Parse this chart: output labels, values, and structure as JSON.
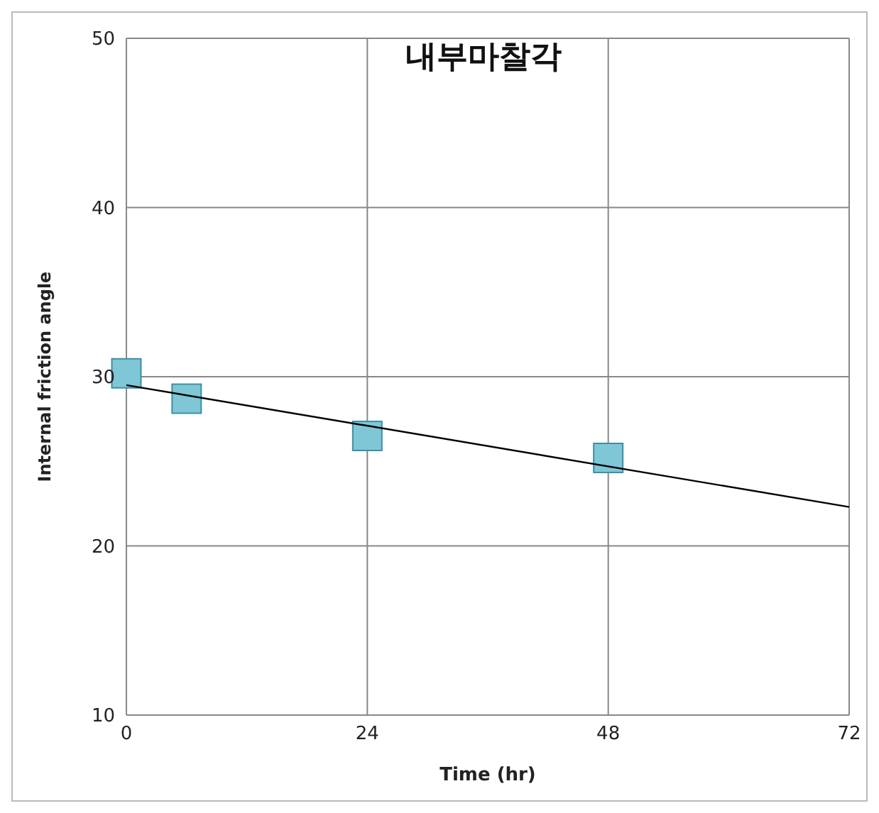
{
  "chart_data": {
    "type": "scatter",
    "title": "내부마찰각",
    "xlabel": "Time (hr)",
    "ylabel": "Internal friction angle",
    "xlim": [
      0,
      72
    ],
    "xticks": [
      0,
      24,
      48,
      72
    ],
    "ylim": [
      10,
      50
    ],
    "yticks": [
      10,
      20,
      30,
      40,
      50
    ],
    "grid": true,
    "legend": false,
    "marker": "square",
    "series": [
      {
        "color": "#7fc6d6",
        "x": [
          0,
          6,
          24,
          48
        ],
        "values": [
          30.2,
          28.7,
          26.5,
          25.2
        ]
      },
      {
        "type": "line",
        "marker": "none",
        "color": "#000000",
        "x": [
          0,
          72
        ],
        "values": [
          29.5,
          22.3
        ]
      }
    ]
  }
}
